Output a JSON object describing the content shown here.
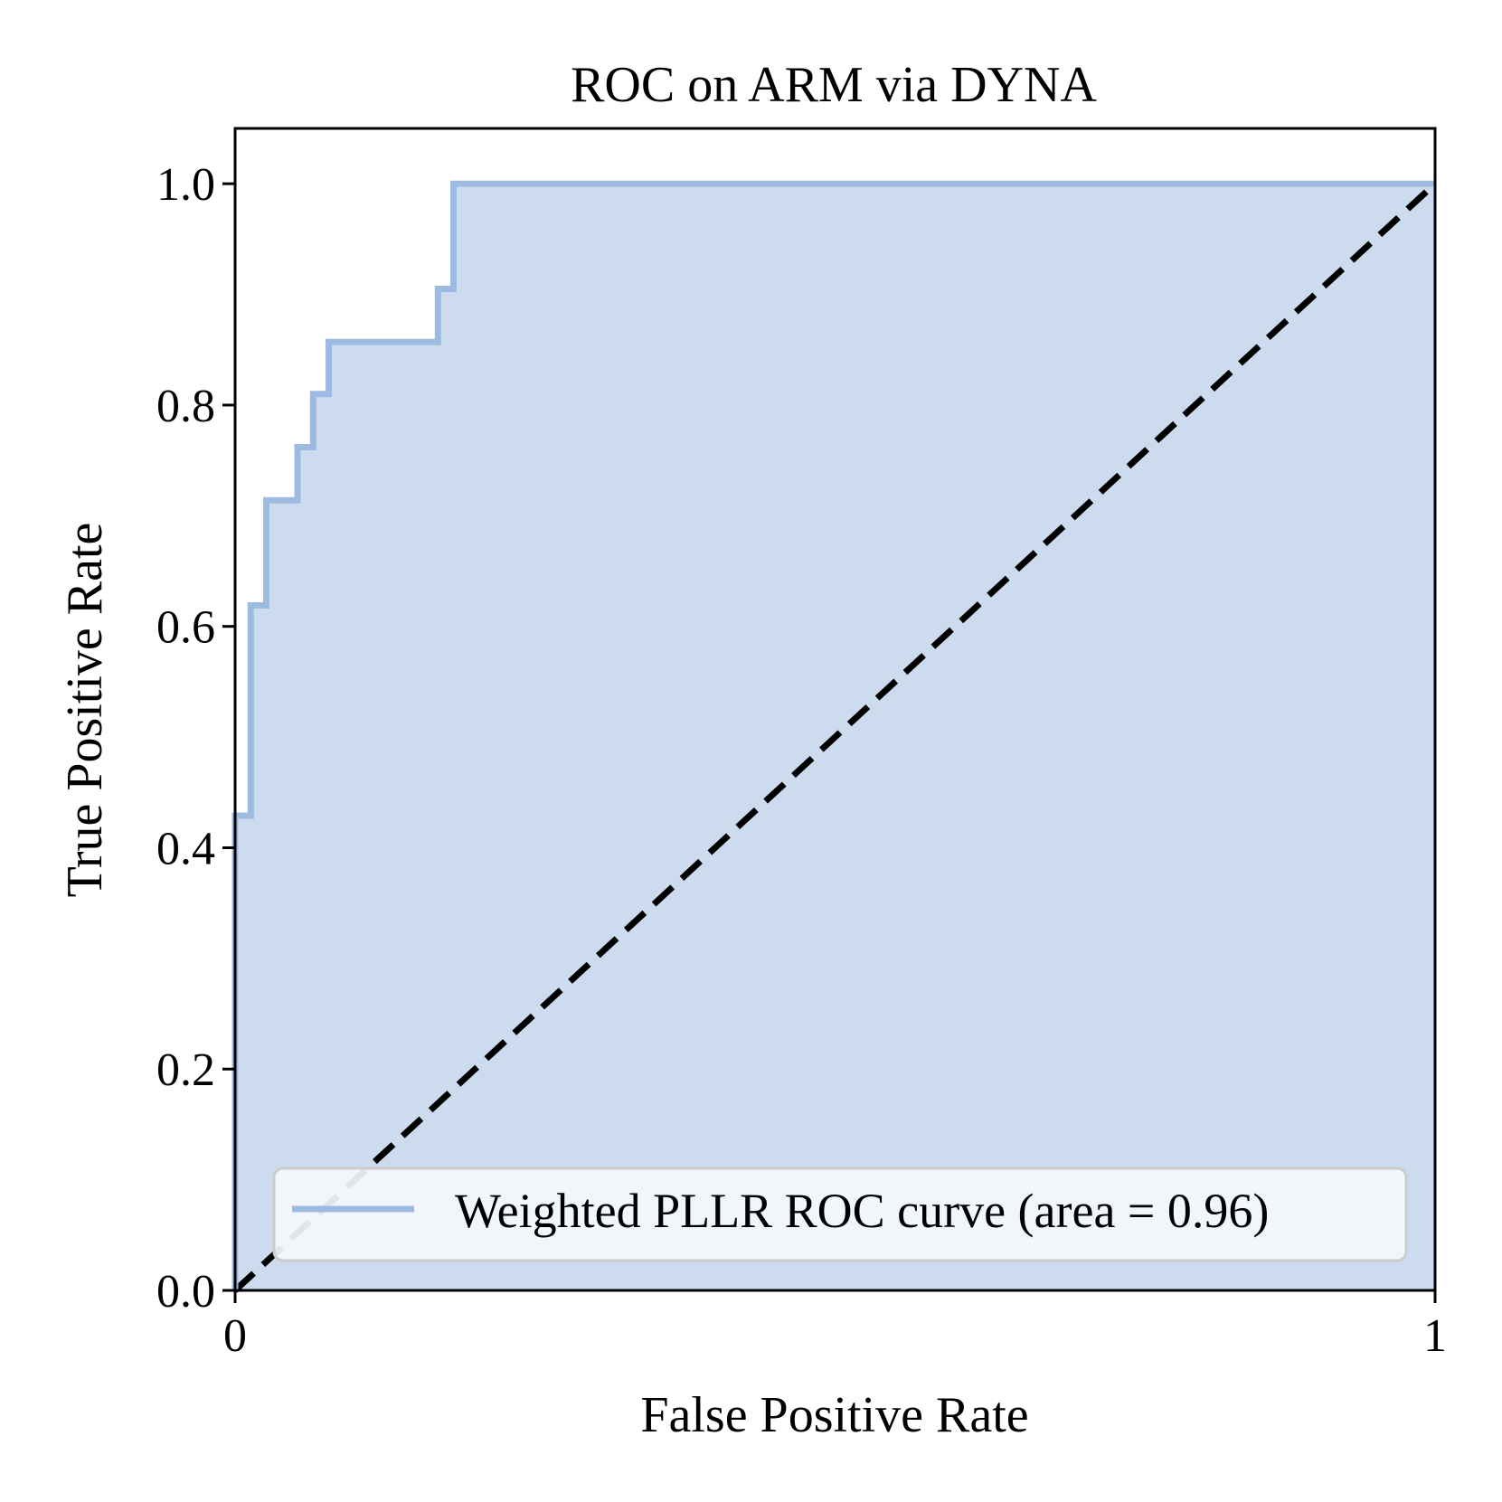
{
  "chart_data": {
    "type": "line",
    "title": "ROC on ARM via DYNA",
    "xlabel": "False Positive Rate",
    "ylabel": "True Positive Rate",
    "xlim": [
      0,
      1
    ],
    "ylim": [
      0,
      1.05
    ],
    "x_ticks": [
      "0",
      "1"
    ],
    "x_tick_values": [
      0,
      1
    ],
    "y_ticks": [
      "0.0",
      "0.2",
      "0.4",
      "0.6",
      "0.8",
      "1.0"
    ],
    "y_tick_values": [
      0,
      0.2,
      0.4,
      0.6,
      0.8,
      1.0
    ],
    "grid": false,
    "legend_position": "lower-right",
    "series": [
      {
        "name": "Weighted PLLR ROC curve (area = 0.96)",
        "style": "step",
        "fill_under": true,
        "color": "#9dbbe0",
        "fill_color": "#ccdcee",
        "x": [
          0.0,
          0.0,
          0.013,
          0.013,
          0.026,
          0.026,
          0.052,
          0.052,
          0.065,
          0.065,
          0.078,
          0.078,
          0.169,
          0.169,
          0.182,
          0.182,
          1.0
        ],
        "y": [
          0.0,
          0.429,
          0.429,
          0.619,
          0.619,
          0.714,
          0.714,
          0.762,
          0.762,
          0.81,
          0.81,
          0.857,
          0.857,
          0.905,
          0.905,
          1.0,
          1.0
        ]
      }
    ],
    "reference_line": {
      "x": [
        0,
        1
      ],
      "y": [
        0,
        1
      ],
      "color": "#000000",
      "dash": "dashed"
    }
  }
}
